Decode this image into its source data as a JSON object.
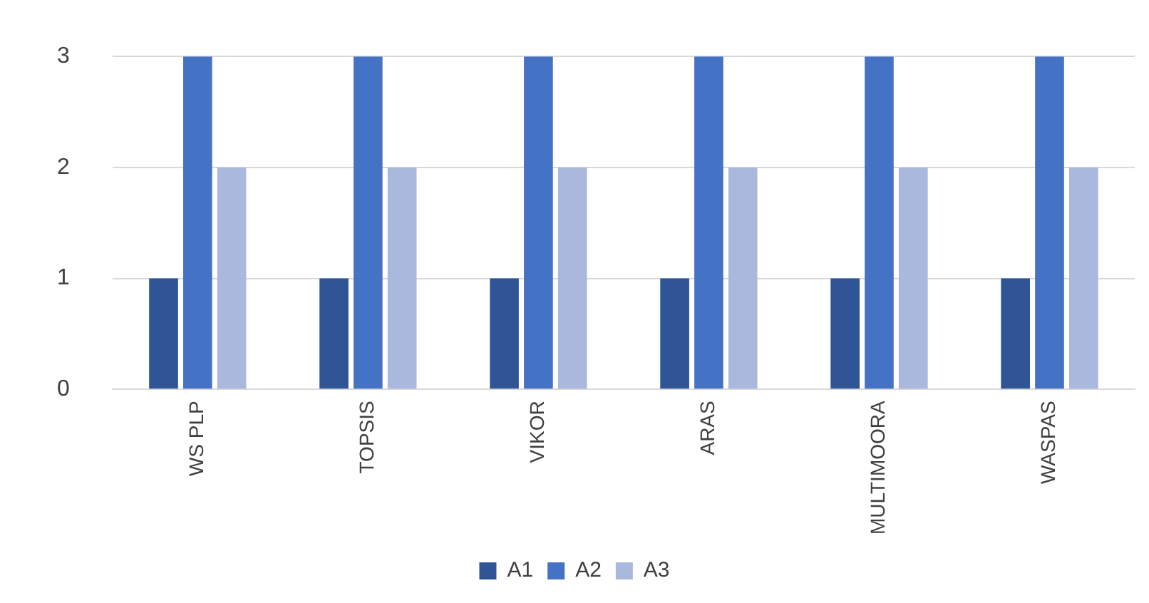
{
  "chart_data": {
    "type": "bar",
    "categories": [
      "WS PLP",
      "TOPSIS",
      "VIKOR",
      "ARAS",
      "MULTIMOORA",
      "WASPAS"
    ],
    "series": [
      {
        "name": "A1",
        "color": "#2f5597",
        "values": [
          1,
          1,
          1,
          1,
          1,
          1
        ]
      },
      {
        "name": "A2",
        "color": "#4472c4",
        "values": [
          3,
          3,
          3,
          3,
          3,
          3
        ]
      },
      {
        "name": "A3",
        "color": "#a9b8dc",
        "values": [
          2,
          2,
          2,
          2,
          2,
          2
        ]
      }
    ],
    "ylim": [
      0,
      3
    ],
    "yticks": [
      0,
      1,
      2,
      3
    ],
    "grid": "y",
    "legend": "bottom"
  }
}
